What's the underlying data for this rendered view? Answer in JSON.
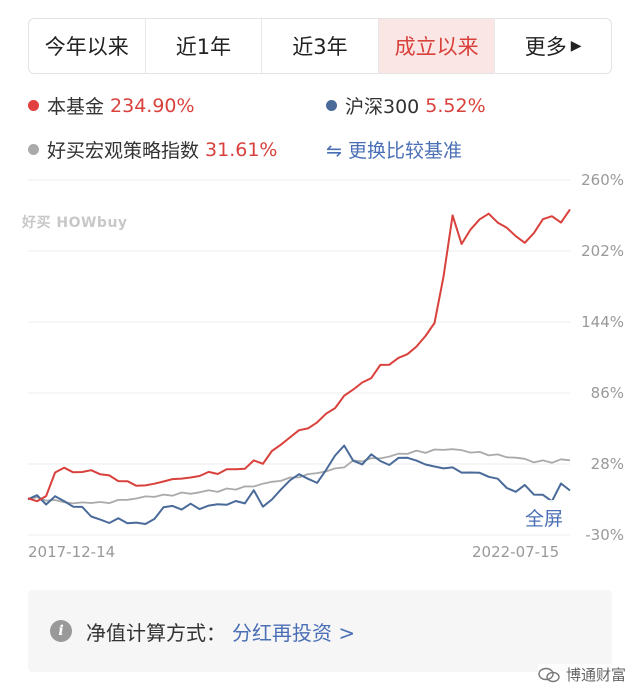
{
  "tabs": [
    {
      "label": "今年以来",
      "active": false
    },
    {
      "label": "近1年",
      "active": false
    },
    {
      "label": "近3年",
      "active": false
    },
    {
      "label": "成立以来",
      "active": true
    },
    {
      "label": "更多",
      "active": false
    }
  ],
  "legend": {
    "fund": {
      "label": "本基金",
      "value": "234.90%",
      "color": "#d9413c"
    },
    "hs300": {
      "label": "沪深300",
      "value": "5.52%",
      "color": "#4a6b9a"
    },
    "index": {
      "label": "好买宏观策略指数",
      "value": "31.61%",
      "color": "#aaaaaa"
    },
    "switch_label": "⇋ 更换比较基准"
  },
  "logo_text": "好买 HOWbuy",
  "fullscreen_label": "全屏",
  "info": {
    "label": "净值计算方式：",
    "value": "分红再投资 >"
  },
  "watermark_text": "博通财富",
  "chart_data": {
    "type": "line",
    "x_start": "2017-12-14",
    "x_end": "2022-07-15",
    "y_ticks": [
      "260%",
      "202%",
      "144%",
      "86%",
      "28%",
      "-30%"
    ],
    "ylim": [
      -30,
      260
    ],
    "grid": true,
    "series": [
      {
        "name": "本基金",
        "color": "#d9413c",
        "values": [
          0,
          -2,
          1,
          22,
          24,
          22,
          21,
          23,
          20,
          18,
          15,
          13,
          11,
          10,
          12,
          14,
          15,
          17,
          16,
          19,
          21,
          20,
          24,
          23,
          25,
          30,
          29,
          38,
          44,
          50,
          55,
          58,
          61,
          70,
          73,
          84,
          89,
          94,
          99,
          108,
          110,
          114,
          118,
          124,
          132,
          144,
          180,
          232,
          207,
          220,
          228,
          232,
          226,
          220,
          215,
          208,
          217,
          228,
          230,
          226,
          235
        ]
      },
      {
        "name": "沪深300",
        "color": "#4a6b9a",
        "values": [
          0,
          2,
          -5,
          2,
          -3,
          -6,
          -8,
          -14,
          -18,
          -20,
          -16,
          -21,
          -19,
          -22,
          -16,
          -8,
          -6,
          -9,
          -5,
          -8,
          -7,
          -4,
          -6,
          -2,
          -4,
          6,
          -6,
          -2,
          8,
          14,
          20,
          16,
          12,
          24,
          34,
          44,
          30,
          28,
          36,
          30,
          28,
          32,
          34,
          30,
          28,
          26,
          24,
          26,
          20,
          22,
          20,
          18,
          16,
          8,
          6,
          10,
          4,
          2,
          -2,
          12,
          6
        ]
      },
      {
        "name": "好买宏观策略指数",
        "color": "#aaaaaa",
        "values": [
          0,
          0,
          -1,
          -2,
          -3,
          -4,
          -4,
          -3,
          -4,
          -3,
          -2,
          -1,
          0,
          1,
          2,
          2,
          3,
          4,
          4,
          5,
          6,
          6,
          7,
          8,
          9,
          10,
          12,
          13,
          15,
          16,
          18,
          19,
          21,
          22,
          24,
          26,
          30,
          31,
          32,
          33,
          34,
          36,
          37,
          38,
          38,
          39,
          40,
          40,
          39,
          38,
          37,
          36,
          35,
          34,
          33,
          32,
          30,
          30,
          30,
          31,
          31.61
        ]
      }
    ]
  }
}
